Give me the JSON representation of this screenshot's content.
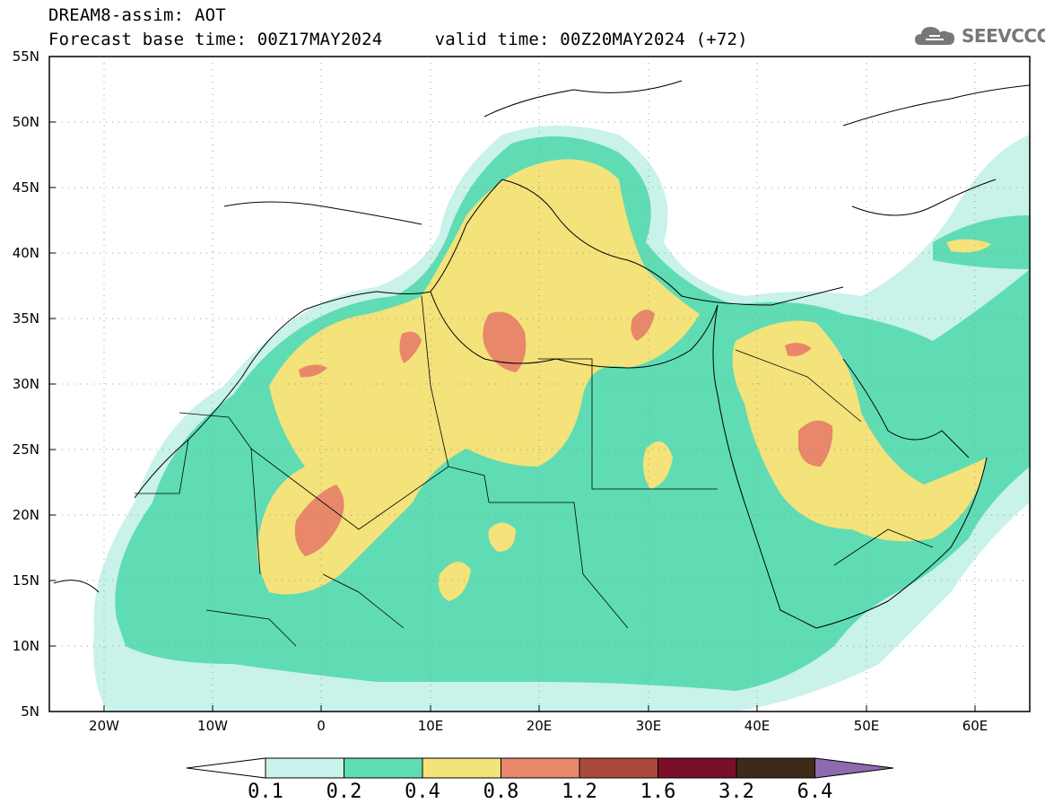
{
  "header": {
    "line1": "DREAM8-assim: AOT",
    "line2": "Forecast base time: 00Z17MAY2024     valid time: 00Z20MAY2024 (+72)"
  },
  "logo": {
    "text": "SEEVCCC",
    "icon": "cloud-icon",
    "color": "#777777"
  },
  "map": {
    "lon_range": [
      -25,
      65
    ],
    "lat_range": [
      5,
      55
    ],
    "grid": "dotted",
    "lat_labels": [
      "55N",
      "50N",
      "45N",
      "40N",
      "35N",
      "30N",
      "25N",
      "20N",
      "15N",
      "10N",
      "5N"
    ],
    "lon_labels": [
      "20W",
      "10W",
      "0",
      "10E",
      "20E",
      "30E",
      "40E",
      "50E",
      "60E"
    ]
  },
  "colorbar": {
    "labels": [
      "0.1",
      "0.2",
      "0.4",
      "0.8",
      "1.2",
      "1.6",
      "3.2",
      "6.4"
    ],
    "colors": [
      "#c8f2ea",
      "#5fdcb4",
      "#f4e27a",
      "#e8876a",
      "#a84b3a",
      "#7a0f2a",
      "#3e2a18",
      "#8e6ab0"
    ]
  }
}
